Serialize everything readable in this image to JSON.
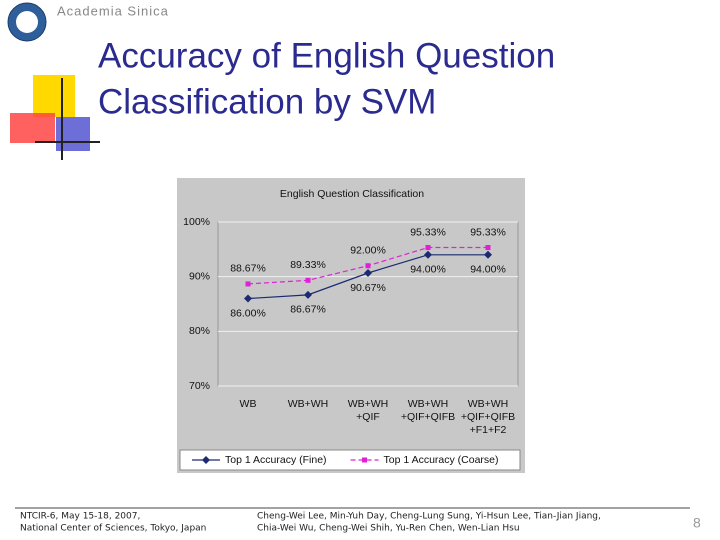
{
  "header": {
    "organization": "Academia Sinica",
    "title": [
      "Accuracy of English Question",
      "Classification by SVM"
    ]
  },
  "chart_data": {
    "type": "line",
    "title": "English Question Classification",
    "categories": [
      "WB",
      "WB+WH",
      "WB+WH\n+QIF",
      "WB+WH\n+QIF+QIFB",
      "WB+WH\n+QIF+QIFB\n+F1+F2"
    ],
    "series": [
      {
        "name": "Top 1 Accuracy (Fine)",
        "color": "#1c2a72",
        "line_style": "solid",
        "marker": "diamond",
        "label_position": "below",
        "values": [
          86.0,
          86.67,
          90.67,
          94.0,
          94.0
        ],
        "value_labels": [
          "86.00%",
          "86.67%",
          "90.67%",
          "94.00%",
          "94.00%"
        ]
      },
      {
        "name": "Top 1 Accuracy (Coarse)",
        "color": "#e020d8",
        "line_style": "dashed",
        "marker": "square",
        "label_position": "above",
        "values": [
          88.67,
          89.33,
          92.0,
          95.33,
          95.33
        ],
        "value_labels": [
          "88.67%",
          "89.33%",
          "92.00%",
          "95.33%",
          "95.33%"
        ]
      }
    ],
    "ylim": [
      70,
      100
    ],
    "yticks": [
      {
        "value": 70,
        "label": "70%"
      },
      {
        "value": 80,
        "label": "80%"
      },
      {
        "value": 90,
        "label": "90%"
      },
      {
        "value": 100,
        "label": "100%"
      }
    ],
    "grid": true,
    "legend": "bottom"
  },
  "footer": {
    "event": [
      "NTCIR-6, May 15-18, 2007,",
      "National Center of Sciences, Tokyo, Japan"
    ],
    "authors": [
      "Cheng-Wei Lee, Min-Yuh Day, Cheng-Lung Sung, Yi-Hsun Lee, Tian-Jian Jiang,",
      "Chia-Wei Wu, Cheng-Wei Shih, Yu-Ren Chen, Wen-Lian Hsu"
    ],
    "page": 8
  }
}
